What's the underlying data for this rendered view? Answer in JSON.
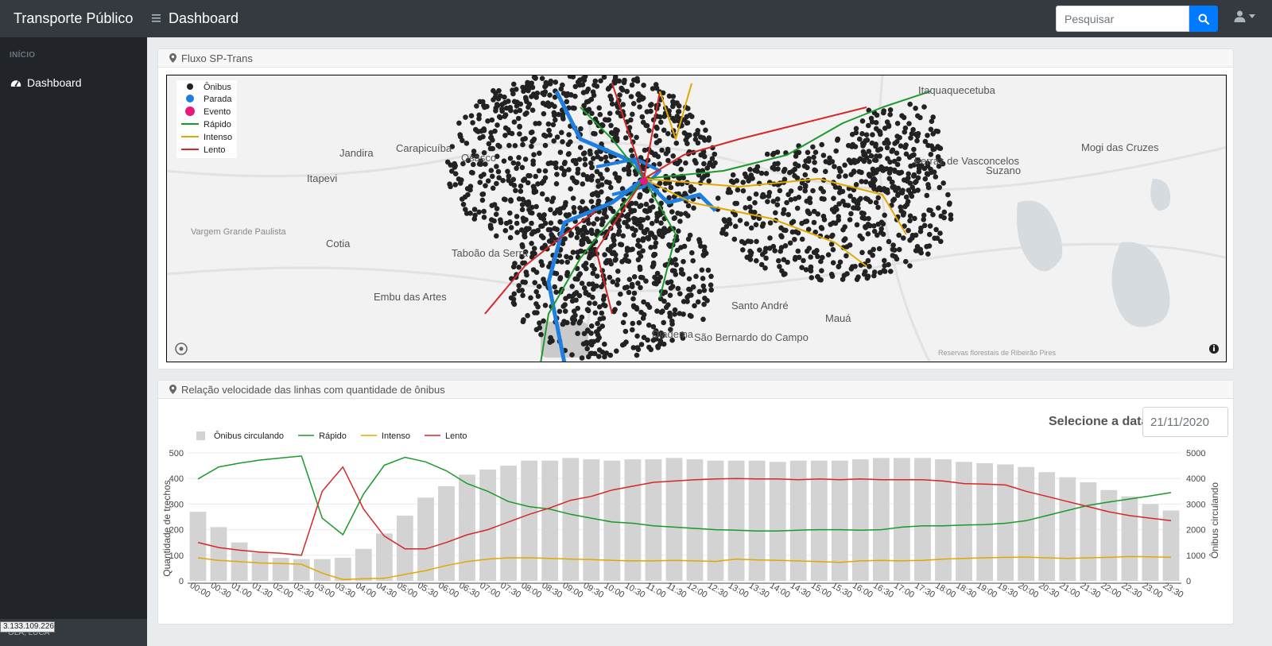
{
  "topbar": {
    "brand": "Transporte Público",
    "page_title": "Dashboard",
    "search_placeholder": "Pesquisar",
    "icons": {
      "menu": "bars-icon",
      "search": "search-icon",
      "user": "user-icon",
      "caret": "caret-down-icon"
    }
  },
  "sidebar": {
    "heading": "INÍCIO",
    "items": [
      {
        "label": "Dashboard",
        "icon": "tachometer-icon"
      }
    ],
    "footer_text": "OLÁ, LUCA"
  },
  "status_tooltip": "3.133.109.226",
  "map_card": {
    "title": "Fluxo SP-Trans",
    "icon": "map-marker-icon",
    "legend": [
      "Ônibus",
      "Parada",
      "Evento",
      "Rápido",
      "Intenso",
      "Lento"
    ],
    "place_labels": [
      "Itaquaquecetuba",
      "Jandira",
      "Carapicuíba",
      "Osasco",
      "Itapevi",
      "Ferraz de Vasconcelos",
      "Suzano",
      "Mogi das Cruzes",
      "Vargem Grande Paulista",
      "Cotia",
      "Taboão da Serra",
      "Embu das Artes",
      "Santo André",
      "Mauá",
      "Diadema",
      "São Bernardo do Campo",
      "Reservas florestais de Ribeirão Pires"
    ],
    "colors": {
      "onibus": "#222222",
      "parada": "#1e7fe0",
      "evento": "#e6197f",
      "rapido": "#1a9a2a",
      "intenso": "#e0a800",
      "lento": "#d62728"
    }
  },
  "chart_card": {
    "title": "Relação velocidade das linhas com quantidade de ônibus",
    "icon": "map-marker-icon",
    "date_label": "Selecione a data",
    "date_value": "21/11/2020"
  },
  "chart_data": {
    "type": "bar",
    "x": [
      "00:00",
      "00:30",
      "01:00",
      "01:30",
      "02:00",
      "02:30",
      "03:00",
      "03:30",
      "04:00",
      "04:30",
      "05:00",
      "05:30",
      "06:00",
      "06:30",
      "07:00",
      "07:30",
      "08:00",
      "08:30",
      "09:00",
      "09:30",
      "10:00",
      "10:30",
      "11:00",
      "11:30",
      "12:00",
      "12:30",
      "13:00",
      "13:30",
      "14:00",
      "14:30",
      "15:00",
      "15:30",
      "16:00",
      "16:30",
      "17:00",
      "17:30",
      "18:00",
      "18:30",
      "19:00",
      "19:30",
      "20:00",
      "20:30",
      "21:00",
      "21:30",
      "22:00",
      "22:30",
      "23:00",
      "23:30"
    ],
    "ylabel": "Quantidade de trechos",
    "y2label": "Ônibus circulando",
    "ylim": [
      0,
      500
    ],
    "y2lim": [
      0,
      5000
    ],
    "legend_position": "top-left",
    "series": [
      {
        "name": "Ônibus circulando",
        "type": "bar",
        "axis": "y2",
        "color": "#d3d3d3",
        "values": [
          2700,
          2100,
          1500,
          1100,
          900,
          850,
          850,
          900,
          1250,
          1850,
          2550,
          3250,
          3700,
          4150,
          4350,
          4500,
          4700,
          4700,
          4800,
          4750,
          4700,
          4750,
          4750,
          4800,
          4750,
          4700,
          4700,
          4700,
          4650,
          4700,
          4700,
          4700,
          4750,
          4800,
          4800,
          4800,
          4750,
          4650,
          4600,
          4550,
          4450,
          4250,
          4050,
          3850,
          3550,
          3300,
          3000,
          2750
        ]
      },
      {
        "name": "Rápido",
        "type": "line",
        "axis": "y",
        "color": "#1a9a2a",
        "values": [
          398,
          445,
          460,
          472,
          480,
          488,
          245,
          180,
          340,
          452,
          483,
          465,
          430,
          380,
          350,
          310,
          290,
          280,
          260,
          245,
          230,
          225,
          215,
          210,
          205,
          200,
          198,
          195,
          195,
          198,
          200,
          200,
          198,
          200,
          210,
          215,
          215,
          218,
          220,
          225,
          235,
          255,
          275,
          295,
          308,
          320,
          332,
          345
        ]
      },
      {
        "name": "Intenso",
        "type": "line",
        "axis": "y",
        "color": "#e0a800",
        "values": [
          90,
          80,
          75,
          70,
          68,
          65,
          30,
          5,
          8,
          10,
          25,
          40,
          60,
          75,
          85,
          90,
          90,
          88,
          85,
          83,
          80,
          78,
          78,
          80,
          78,
          76,
          85,
          82,
          80,
          78,
          75,
          72,
          78,
          80,
          78,
          80,
          85,
          88,
          90,
          92,
          93,
          90,
          88,
          90,
          92,
          95,
          94,
          92
        ]
      },
      {
        "name": "Lento",
        "type": "line",
        "axis": "y",
        "color": "#d62728",
        "values": [
          150,
          130,
          120,
          112,
          108,
          100,
          350,
          445,
          280,
          175,
          125,
          125,
          150,
          180,
          200,
          230,
          260,
          285,
          315,
          330,
          355,
          370,
          385,
          390,
          395,
          398,
          400,
          398,
          398,
          395,
          398,
          395,
          398,
          395,
          395,
          395,
          390,
          380,
          378,
          375,
          350,
          330,
          310,
          290,
          270,
          255,
          245,
          235
        ]
      }
    ]
  }
}
